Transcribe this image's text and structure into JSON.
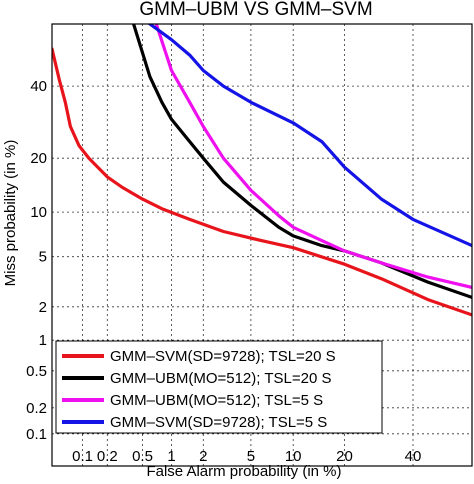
{
  "chart_data": {
    "type": "line",
    "title": "GMM–UBM  VS  GMM–SVM",
    "xlabel": "False Alarm probability (in %)",
    "ylabel": "Miss probability (in %)",
    "scale": "probit (normal deviate)",
    "xlim": [
      0.04,
      60
    ],
    "ylim": [
      0.04,
      60
    ],
    "grid": "dashed",
    "legend_position": "bottom-left",
    "xticks": [
      "0.1",
      "0.2",
      "0.5",
      "1",
      "2",
      "5",
      "10",
      "20",
      "40"
    ],
    "yticks": [
      "0.1",
      "0.2",
      "0.5",
      "1",
      "2",
      "5",
      "10",
      "20",
      "40"
    ],
    "x_tick_values": [
      0.1,
      0.2,
      0.5,
      1,
      2,
      5,
      10,
      20,
      40
    ],
    "y_tick_values": [
      0.1,
      0.2,
      0.5,
      1,
      2,
      5,
      10,
      20,
      40
    ],
    "series": [
      {
        "name": "GMM–SVM(SD=9728); TSL=20 S",
        "color": "#e8141b",
        "x": [
          0.04,
          0.05,
          0.06,
          0.07,
          0.09,
          0.12,
          0.2,
          0.3,
          0.5,
          0.8,
          1.5,
          3,
          6,
          10,
          20,
          30,
          45,
          60
        ],
        "y": [
          52,
          42,
          35,
          28,
          23,
          20,
          16,
          14,
          12,
          10.5,
          9,
          7.5,
          6.5,
          5.8,
          4.4,
          3.4,
          2.3,
          1.7
        ]
      },
      {
        "name": "GMM–UBM(MO=512); TSL=20 S",
        "color": "#000000",
        "x": [
          0.4,
          0.6,
          0.8,
          1,
          1.5,
          2,
          3,
          5,
          8,
          10,
          15,
          20,
          30,
          45,
          60
        ],
        "y": [
          60,
          43,
          35,
          30,
          24,
          20,
          15,
          11,
          8,
          7,
          6,
          5.5,
          4.5,
          3.2,
          2.4
        ]
      },
      {
        "name": "GMM–UBM(MO=512); TSL=5 S",
        "color": "#ef10ef",
        "x": [
          0.7,
          1,
          1.5,
          2,
          3,
          5,
          8,
          10,
          15,
          20,
          30,
          45,
          60
        ],
        "y": [
          60,
          45,
          35,
          28,
          20,
          13.5,
          9.5,
          8,
          6.5,
          5.5,
          4.5,
          3.5,
          2.9
        ]
      },
      {
        "name": "GMM–SVM(SD=9728); TSL=5 S",
        "color": "#1414e6",
        "x": [
          0.6,
          1,
          1.5,
          2,
          3,
          5,
          10,
          15,
          20,
          30,
          40,
          60
        ],
        "y": [
          60,
          55,
          50,
          45,
          40,
          35,
          29,
          24,
          18,
          12,
          9,
          6
        ]
      }
    ]
  }
}
